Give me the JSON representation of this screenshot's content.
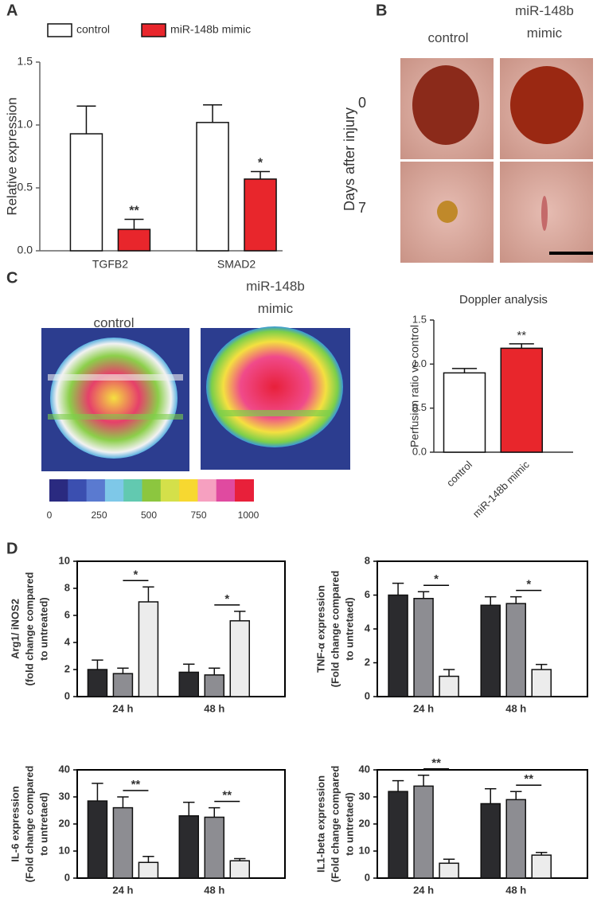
{
  "chart_data": [
    {
      "type": "bar",
      "panel": "A",
      "ylabel": "Relative expression",
      "legend": "top",
      "categories": [
        "TGFB2",
        "SMAD2"
      ],
      "series": [
        {
          "name": "control",
          "color": "#ffffff",
          "values": [
            0.93,
            1.02
          ],
          "errors": [
            0.22,
            0.14
          ]
        },
        {
          "name": "miR-148b mimic",
          "color": "#e8262c",
          "values": [
            0.17,
            0.57
          ],
          "errors": [
            0.08,
            0.06
          ]
        }
      ],
      "ylim": [
        0,
        1.5
      ],
      "yticks": [
        {
          "value": 0,
          "label": "0.0"
        },
        0.5,
        {
          "value": 1,
          "label": "1.0"
        },
        1.5
      ],
      "annotations": [
        "**",
        "*"
      ]
    },
    {
      "type": "bar",
      "title": "Doppler analysis",
      "ylabel": "Perfusion ratio vs control",
      "categories": [
        "control",
        "miR-148b mimic"
      ],
      "values": [
        0.9,
        1.18
      ],
      "errors": [
        0.05,
        0.05
      ],
      "colors": [
        "#ffffff",
        "#e8262c"
      ],
      "ylim": [
        0,
        1.5
      ],
      "yticks": [
        {
          "value": 0,
          "label": "0.0"
        },
        0.5,
        {
          "value": 1,
          "label": "1.0"
        },
        1.5
      ],
      "annotations": [
        "**"
      ]
    },
    {
      "type": "bar",
      "panel": "D",
      "ylabel": [
        "Arg1/ iNOS2",
        "(fold change compared",
        "to untreated)"
      ],
      "categories": [
        "24 h",
        "48 h"
      ],
      "series": [
        {
          "color": "#2b2b2e",
          "values": [
            2.0,
            1.8
          ],
          "errors": [
            0.7,
            0.6
          ]
        },
        {
          "color": "#8d8d92",
          "values": [
            1.7,
            1.6
          ],
          "errors": [
            0.4,
            0.5
          ]
        },
        {
          "color": "#ececec",
          "values": [
            7.0,
            5.6
          ],
          "errors": [
            1.1,
            0.7
          ]
        }
      ],
      "ylim": [
        0,
        10
      ],
      "yticks": [
        0,
        2,
        4,
        6,
        8,
        10
      ],
      "annotations": [
        "*",
        "*"
      ]
    },
    {
      "type": "bar",
      "ylabel": [
        "TNF-α expression",
        "(Fold change compared",
        "to untretaed)"
      ],
      "categories": [
        "24 h",
        "48 h"
      ],
      "series": [
        {
          "color": "#2b2b2e",
          "values": [
            6.0,
            5.4
          ],
          "errors": [
            0.7,
            0.5
          ]
        },
        {
          "color": "#8d8d92",
          "values": [
            5.8,
            5.5
          ],
          "errors": [
            0.4,
            0.4
          ]
        },
        {
          "color": "#ececec",
          "values": [
            1.2,
            1.6
          ],
          "errors": [
            0.4,
            0.3
          ]
        }
      ],
      "ylim": [
        0,
        8
      ],
      "yticks": [
        0,
        2,
        4,
        6,
        8
      ],
      "annotations": [
        "*",
        "*"
      ]
    },
    {
      "type": "bar",
      "ylabel": [
        "IL-6 expression",
        "(Fold change compared",
        "to untretaed)"
      ],
      "categories": [
        "24 h",
        "48 h"
      ],
      "series": [
        {
          "color": "#2b2b2e",
          "values": [
            28.5,
            23
          ],
          "errors": [
            6.5,
            5
          ]
        },
        {
          "color": "#8d8d92",
          "values": [
            26,
            22.5
          ],
          "errors": [
            4,
            3.5
          ]
        },
        {
          "color": "#ececec",
          "values": [
            5.8,
            6.4
          ],
          "errors": [
            2.2,
            0.8
          ]
        }
      ],
      "ylim": [
        0,
        40
      ],
      "yticks": [
        0,
        10,
        20,
        30,
        40
      ],
      "annotations": [
        "**",
        "**"
      ]
    },
    {
      "type": "bar",
      "ylabel": [
        "IL1-beta expression",
        "(Fold change compared",
        "to untretaed)"
      ],
      "categories": [
        "24 h",
        "48 h"
      ],
      "series": [
        {
          "color": "#2b2b2e",
          "values": [
            32,
            27.5
          ],
          "errors": [
            4,
            5.5
          ]
        },
        {
          "color": "#8d8d92",
          "values": [
            34,
            29
          ],
          "errors": [
            4,
            3
          ]
        },
        {
          "color": "#ececec",
          "values": [
            5.5,
            8.5
          ],
          "errors": [
            1.5,
            1
          ]
        }
      ],
      "ylim": [
        0,
        40
      ],
      "yticks": [
        0,
        10,
        20,
        30,
        40
      ],
      "annotations": [
        "**",
        "**"
      ]
    }
  ],
  "panel_b": {
    "panel": "B",
    "columns": [
      "control",
      "miR-148b mimic"
    ],
    "row_title": "Days after injury",
    "rows": [
      "0",
      "7"
    ]
  },
  "panel_c": {
    "panel": "C",
    "images": [
      "control",
      "miR-148b mimic"
    ],
    "scale_ticks": [
      0,
      250,
      500,
      750,
      1000
    ]
  }
}
